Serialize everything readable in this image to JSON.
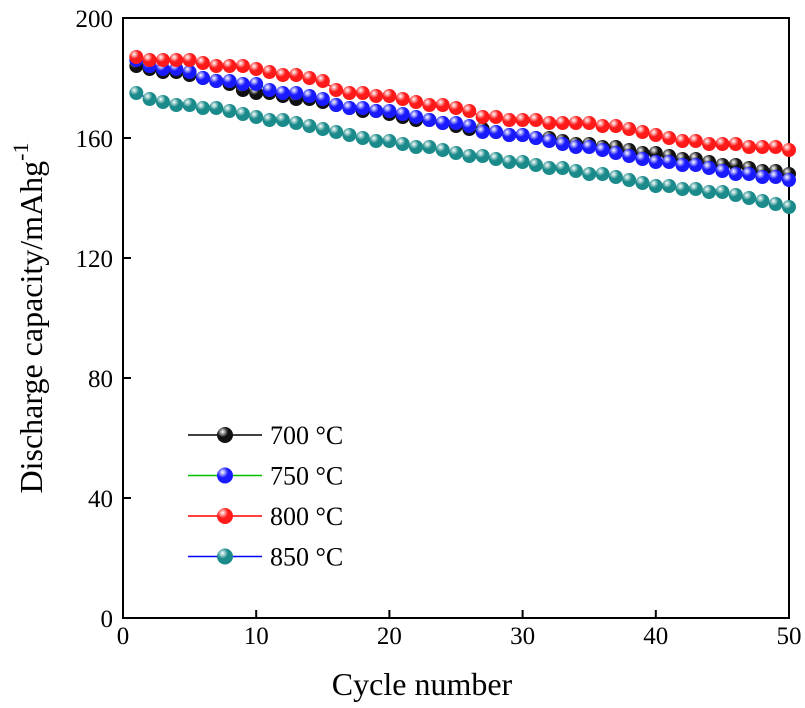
{
  "chart_data": {
    "type": "scatter",
    "xlabel": "Cycle number",
    "ylabel": "Discharge capacity/mAhg",
    "ylabel_superscript": "-1",
    "xlim": [
      0,
      50
    ],
    "xticks": [
      0,
      10,
      20,
      30,
      40,
      50
    ],
    "ylim": [
      0,
      200
    ],
    "yticks": [
      0,
      40,
      80,
      120,
      160,
      200
    ],
    "legend": "lower-left",
    "x": [
      1,
      2,
      3,
      4,
      5,
      6,
      7,
      8,
      9,
      10,
      11,
      12,
      13,
      14,
      15,
      16,
      17,
      18,
      19,
      20,
      21,
      22,
      23,
      24,
      25,
      26,
      27,
      28,
      29,
      30,
      31,
      32,
      33,
      34,
      35,
      36,
      37,
      38,
      39,
      40,
      41,
      42,
      43,
      44,
      45,
      46,
      47,
      48,
      49,
      50
    ],
    "series": [
      {
        "name": "700 °C",
        "color": "#111111",
        "line_color": "#000000",
        "values": [
          184,
          183,
          182,
          182,
          181,
          180,
          179,
          178,
          176,
          175,
          175,
          174,
          173,
          173,
          172,
          171,
          170,
          169,
          169,
          168,
          167,
          166,
          166,
          165,
          164,
          163,
          163,
          162,
          161,
          161,
          160,
          160,
          159,
          158,
          158,
          157,
          157,
          156,
          155,
          155,
          154,
          153,
          153,
          152,
          151,
          151,
          150,
          149,
          149,
          148
        ]
      },
      {
        "name": "750 °C",
        "color": "#1a1aff",
        "line_color": "#00c000",
        "values": [
          186,
          184,
          183,
          183,
          182,
          180,
          179,
          179,
          178,
          178,
          176,
          175,
          175,
          174,
          173,
          171,
          170,
          170,
          169,
          169,
          168,
          167,
          166,
          165,
          165,
          164,
          162,
          162,
          161,
          161,
          160,
          159,
          158,
          157,
          157,
          156,
          155,
          154,
          153,
          152,
          152,
          151,
          151,
          150,
          149,
          148,
          148,
          147,
          147,
          146
        ]
      },
      {
        "name": "800 °C",
        "color": "#ff1a1a",
        "line_color": "#ff0000",
        "values": [
          187,
          186,
          186,
          186,
          186,
          185,
          184,
          184,
          184,
          183,
          182,
          181,
          181,
          180,
          179,
          176,
          175,
          175,
          174,
          174,
          173,
          172,
          171,
          171,
          170,
          169,
          167,
          167,
          166,
          166,
          166,
          165,
          165,
          165,
          165,
          164,
          164,
          163,
          162,
          161,
          160,
          159,
          159,
          158,
          158,
          158,
          157,
          157,
          157,
          156
        ]
      },
      {
        "name": "850 °C",
        "color": "#1a8a8a",
        "line_color": "#0000ff",
        "values": [
          175,
          173,
          172,
          171,
          171,
          170,
          170,
          169,
          168,
          167,
          166,
          166,
          165,
          164,
          163,
          162,
          161,
          160,
          159,
          159,
          158,
          157,
          157,
          156,
          155,
          154,
          154,
          153,
          152,
          152,
          151,
          150,
          150,
          149,
          148,
          148,
          147,
          146,
          145,
          144,
          144,
          143,
          143,
          142,
          142,
          141,
          140,
          139,
          138,
          137
        ]
      }
    ]
  }
}
